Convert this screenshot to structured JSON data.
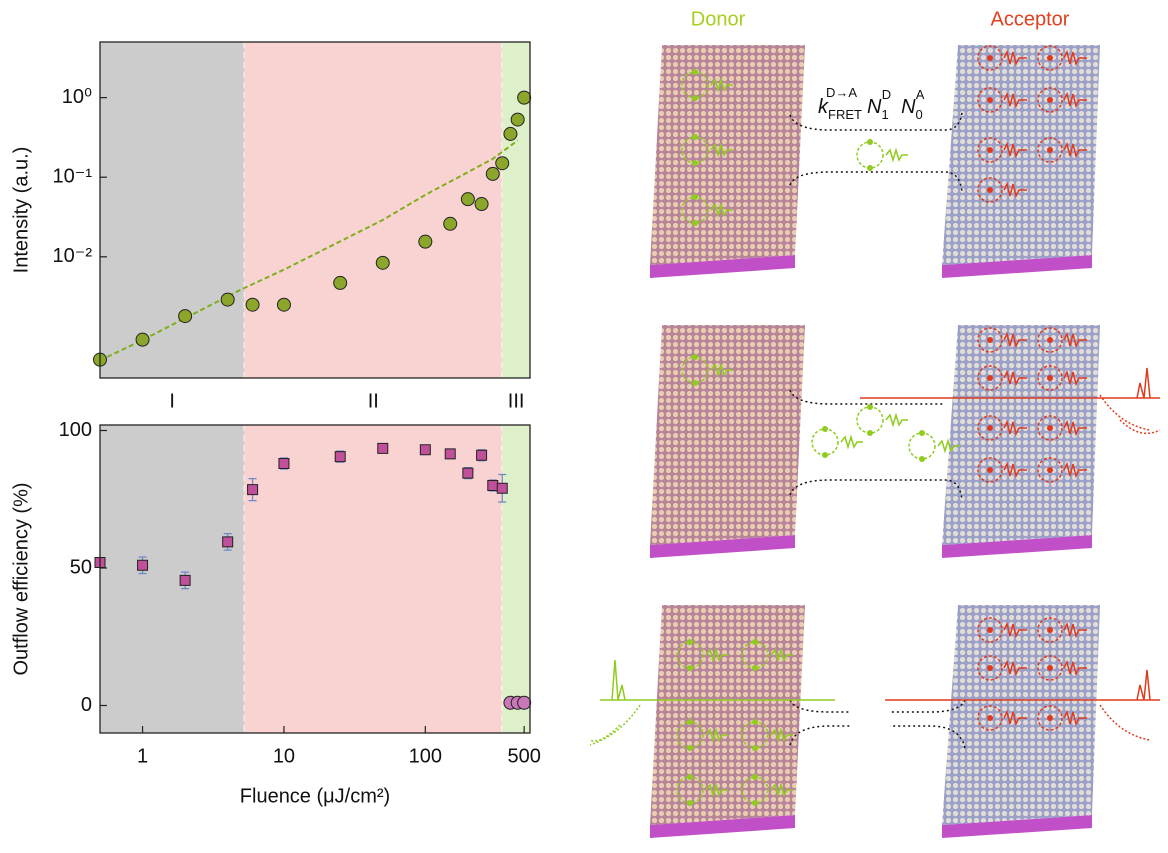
{
  "chart_data": [
    {
      "type": "scatter",
      "y_label": "Intensity (a.u.)",
      "xscale": "log",
      "yscale": "log",
      "xlim": [
        0.5,
        550
      ],
      "ylim": [
        0.0003,
        5
      ],
      "yticks": [
        {
          "value": 0.01,
          "label": "10⁻²"
        },
        {
          "value": 0.1,
          "label": "10⁻¹"
        },
        {
          "value": 1,
          "label": "10⁰"
        }
      ],
      "regions": [
        {
          "label": "I",
          "from": 0.5,
          "to": 5.25,
          "color": "#cccccc"
        },
        {
          "label": "II",
          "from": 5.25,
          "to": 350,
          "color": "#f9d3d1"
        },
        {
          "label": "III",
          "from": 350,
          "to": 550,
          "color": "#ddf0c9"
        }
      ],
      "series": [
        {
          "style": "dashed-line",
          "color": "#7fae1c",
          "x": [
            0.5,
            1,
            5,
            10,
            50,
            100,
            300,
            450
          ],
          "values": [
            0.0005,
            0.0009,
            0.0039,
            0.0069,
            0.029,
            0.06,
            0.17,
            0.29
          ]
        },
        {
          "marker": "circle",
          "color": "#8ba62b",
          "x": [
            0.5,
            1,
            2,
            4,
            6,
            10,
            25,
            50,
            100,
            150,
            200,
            250,
            300,
            350,
            400,
            450,
            500
          ],
          "values": [
            0.00051,
            0.00091,
            0.0018,
            0.0029,
            0.0025,
            0.0025,
            0.0047,
            0.0084,
            0.0155,
            0.026,
            0.053,
            0.046,
            0.11,
            0.15,
            0.35,
            0.53,
            1
          ]
        }
      ]
    },
    {
      "type": "scatter",
      "x_label": "Fluence (μJ/cm²)",
      "y_label": "Outflow efficiency (%)",
      "xscale": "log",
      "yscale": "linear",
      "xlim": [
        0.5,
        550
      ],
      "ylim": [
        -10,
        102
      ],
      "xticks": [
        1,
        10,
        100,
        500
      ],
      "yticks": [
        0,
        50,
        100
      ],
      "regions": [
        {
          "from": 0.5,
          "to": 5.25,
          "color": "#cccccc"
        },
        {
          "from": 5.25,
          "to": 350,
          "color": "#f9d3d1"
        },
        {
          "from": 350,
          "to": 550,
          "color": "#ddf0c9"
        }
      ],
      "series": [
        {
          "marker": "square",
          "color": "#c0509a",
          "x": [
            0.5,
            1,
            2,
            4,
            6,
            10,
            25,
            50,
            100,
            150,
            200,
            250,
            300,
            350
          ],
          "values": [
            52,
            51,
            45.5,
            59.5,
            78.5,
            88,
            90.5,
            93.5,
            93,
            91.5,
            84.5,
            91,
            80,
            79
          ],
          "errors": [
            1.5,
            3,
            3,
            3,
            4,
            2,
            2,
            1.5,
            1,
            1,
            2,
            2,
            2,
            5
          ]
        },
        {
          "marker": "circle",
          "color": "#c878b8",
          "x": [
            400,
            450,
            500
          ],
          "values": [
            1,
            1,
            1
          ]
        }
      ]
    }
  ],
  "diagram": {
    "donor": "Donor",
    "acceptor": "Acceptor",
    "rate": {
      "k": "k",
      "k_sub": "FRET",
      "k_sup": "D→A",
      "n1": "N",
      "n1_sub": "1",
      "n1_sup": "D",
      "n0": "N",
      "n0_sub": "0",
      "n0_sup": "A"
    }
  }
}
